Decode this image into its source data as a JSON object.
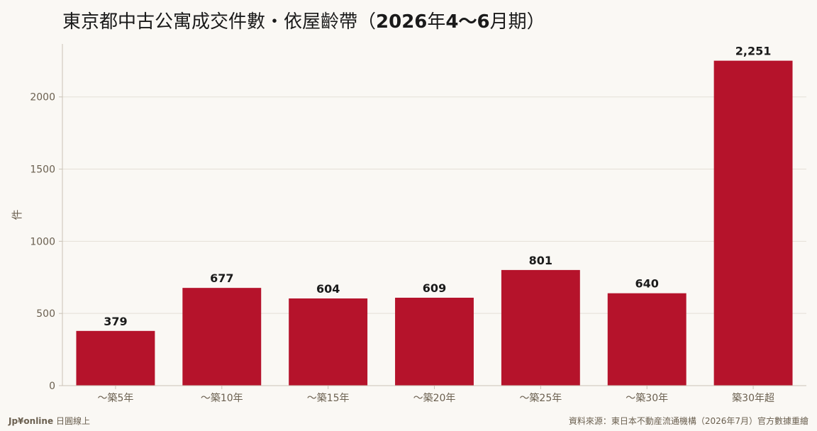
{
  "title": {
    "main": "東京都中古公寓成交件數・依屋齡帶（",
    "bold": "2026",
    "mid": "年",
    "bold2": "4〜6",
    "end": "月期）"
  },
  "branding": {
    "name": "Jp¥online",
    "sub": "日圓線上"
  },
  "source": "資料來源：東日本不動産流通機構（2026年7月）官方數據重繪",
  "chart_data": {
    "type": "bar",
    "title": "東京都中古公寓成交件數・依屋齡帶（2026年4〜6月期）",
    "xlabel": "",
    "ylabel": "件",
    "categories": [
      "〜築5年",
      "〜築10年",
      "〜築15年",
      "〜築20年",
      "〜築25年",
      "〜築30年",
      "築30年超"
    ],
    "values": [
      379,
      677,
      604,
      609,
      801,
      640,
      2251
    ],
    "value_labels": [
      "379",
      "677",
      "604",
      "609",
      "801",
      "640",
      "2,251"
    ],
    "ylim": [
      0,
      2367
    ],
    "yticks": [
      0,
      500,
      1000,
      1500,
      2000
    ],
    "grid": true,
    "bar_color": "#b5132b"
  }
}
